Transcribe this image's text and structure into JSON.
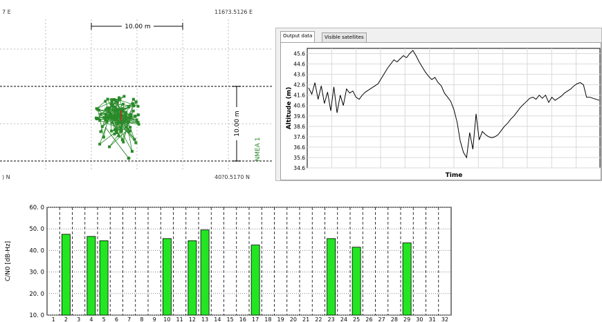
{
  "map_view": {
    "lon_left": "7 E",
    "lon_right": "116?3.5126 E",
    "lat_left": ") N",
    "lat_right": "40?0.5170 N",
    "scale_h": "10.00 m",
    "scale_v": "10.00 m",
    "track_label": "NMEA 1",
    "track_color": "#2a8a2a"
  },
  "output_panel": {
    "tabs": [
      {
        "label": "Output data",
        "active": true
      },
      {
        "label": "Visible satellites",
        "active": false
      }
    ]
  },
  "chart_data": [
    {
      "type": "line",
      "xlabel": "Time",
      "ylabel": "Altitude (m)",
      "ylim": [
        34.6,
        46.1
      ],
      "yticks": [
        "45.6",
        "44.6",
        "43.6",
        "42.6",
        "41.6",
        "40.6",
        "39.6",
        "38.6",
        "37.6",
        "36.6",
        "35.6",
        "34.6"
      ],
      "series": [
        {
          "values": [
            42.3,
            41.7,
            42.8,
            41.2,
            42.5,
            40.8,
            41.9,
            40.1,
            42.4,
            39.9,
            41.6,
            40.6,
            42.2,
            41.8,
            42.0,
            41.4,
            41.2,
            41.6,
            41.9,
            42.1,
            42.3,
            42.5,
            42.7,
            43.2,
            43.7,
            44.2,
            44.6,
            45.0,
            44.8,
            45.1,
            45.4,
            45.2,
            45.6,
            45.9,
            45.4,
            44.8,
            44.3,
            43.8,
            43.4,
            43.1,
            43.3,
            42.8,
            42.5,
            41.8,
            41.4,
            41.0,
            40.2,
            39.0,
            37.2,
            36.1,
            35.6,
            38.0,
            36.4,
            39.8,
            37.3,
            38.1,
            37.8,
            37.6,
            37.5,
            37.6,
            37.8,
            38.2,
            38.6,
            38.9,
            39.3,
            39.6,
            40.0,
            40.4,
            40.7,
            41.0,
            41.3,
            41.4,
            41.2,
            41.6,
            41.3,
            41.6,
            40.9,
            41.4,
            41.1,
            41.3,
            41.5,
            41.8,
            42.0,
            42.2,
            42.5,
            42.7,
            42.8,
            42.6,
            41.4,
            41.4,
            41.3,
            41.2,
            41.1
          ]
        }
      ]
    },
    {
      "type": "bar",
      "ylabel": "C/N0 [dB-Hz]",
      "ylim": [
        10.0,
        60.0
      ],
      "yticks": [
        "60. 0",
        "50. 0",
        "40. 0",
        "30. 0",
        "20. 0",
        "10. 0"
      ],
      "categories": [
        "1",
        "2",
        "3",
        "4",
        "5",
        "6",
        "7",
        "8",
        "9",
        "10",
        "11",
        "12",
        "13",
        "14",
        "15",
        "16",
        "17",
        "18",
        "19",
        "20",
        "21",
        "22",
        "23",
        "24",
        "25",
        "26",
        "27",
        "28",
        "29",
        "30",
        "31",
        "32"
      ],
      "values": [
        null,
        47.5,
        null,
        46.5,
        44.5,
        null,
        null,
        null,
        null,
        45.5,
        null,
        44.5,
        49.5,
        null,
        null,
        null,
        42.5,
        null,
        null,
        null,
        null,
        null,
        45.5,
        null,
        41.5,
        null,
        null,
        null,
        43.5,
        null,
        null,
        null
      ],
      "bar_color": "#22e622"
    }
  ]
}
